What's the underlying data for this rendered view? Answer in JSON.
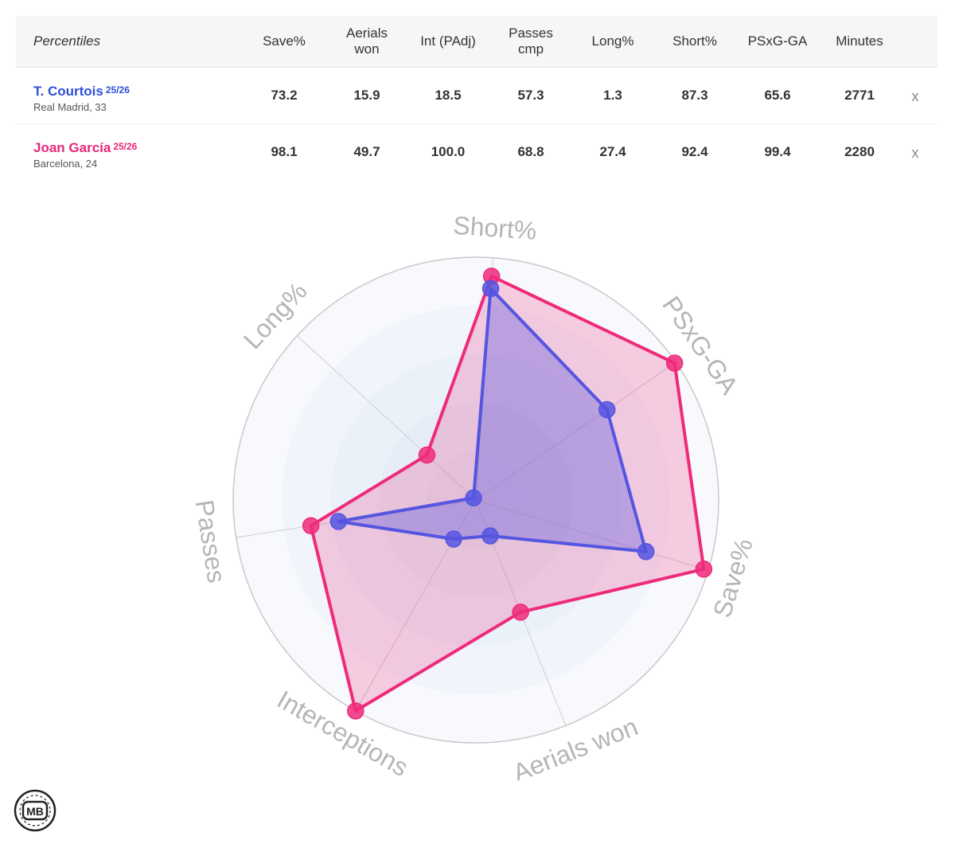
{
  "table": {
    "header_label": "Percentiles",
    "columns": [
      {
        "line1": "Save%",
        "line2": ""
      },
      {
        "line1": "Aerials",
        "line2": "won"
      },
      {
        "line1": "Int (PAdj)",
        "line2": ""
      },
      {
        "line1": "Passes",
        "line2": "cmp"
      },
      {
        "line1": "Long%",
        "line2": ""
      },
      {
        "line1": "Short%",
        "line2": ""
      },
      {
        "line1": "PSxG-GA",
        "line2": ""
      },
      {
        "line1": "Minutes",
        "line2": ""
      }
    ],
    "players": [
      {
        "name": "T. Courtois",
        "season": "25/26",
        "club_age": "Real Madrid, 33",
        "values": [
          "73.2",
          "15.9",
          "18.5",
          "57.3",
          "1.3",
          "87.3",
          "65.6",
          "2771"
        ],
        "remove_label": "x"
      },
      {
        "name": "Joan García",
        "season": "25/26",
        "club_age": "Barcelona, 24",
        "values": [
          "98.1",
          "49.7",
          "100.0",
          "68.8",
          "27.4",
          "92.4",
          "99.4",
          "2280"
        ],
        "remove_label": "x"
      }
    ]
  },
  "chart_data": {
    "type": "radar",
    "axes": [
      "Short%",
      "PSxG-GA",
      "Save%",
      "Aerials won",
      "Interceptions",
      "Passes",
      "Long%"
    ],
    "range": [
      0,
      100
    ],
    "series": [
      {
        "name": "T. Courtois",
        "color": "#5555e0",
        "values": [
          87.3,
          65.6,
          73.2,
          15.9,
          18.5,
          57.3,
          1.3
        ]
      },
      {
        "name": "Joan García",
        "color": "#ee2a7b",
        "values": [
          92.4,
          99.4,
          98.1,
          49.7,
          100.0,
          68.8,
          27.4
        ]
      }
    ]
  },
  "colors": {
    "player1": "#2f4fd6",
    "player2": "#e8267a",
    "axis_label": "#b5b5b5"
  },
  "logo": {
    "text": "MB"
  }
}
